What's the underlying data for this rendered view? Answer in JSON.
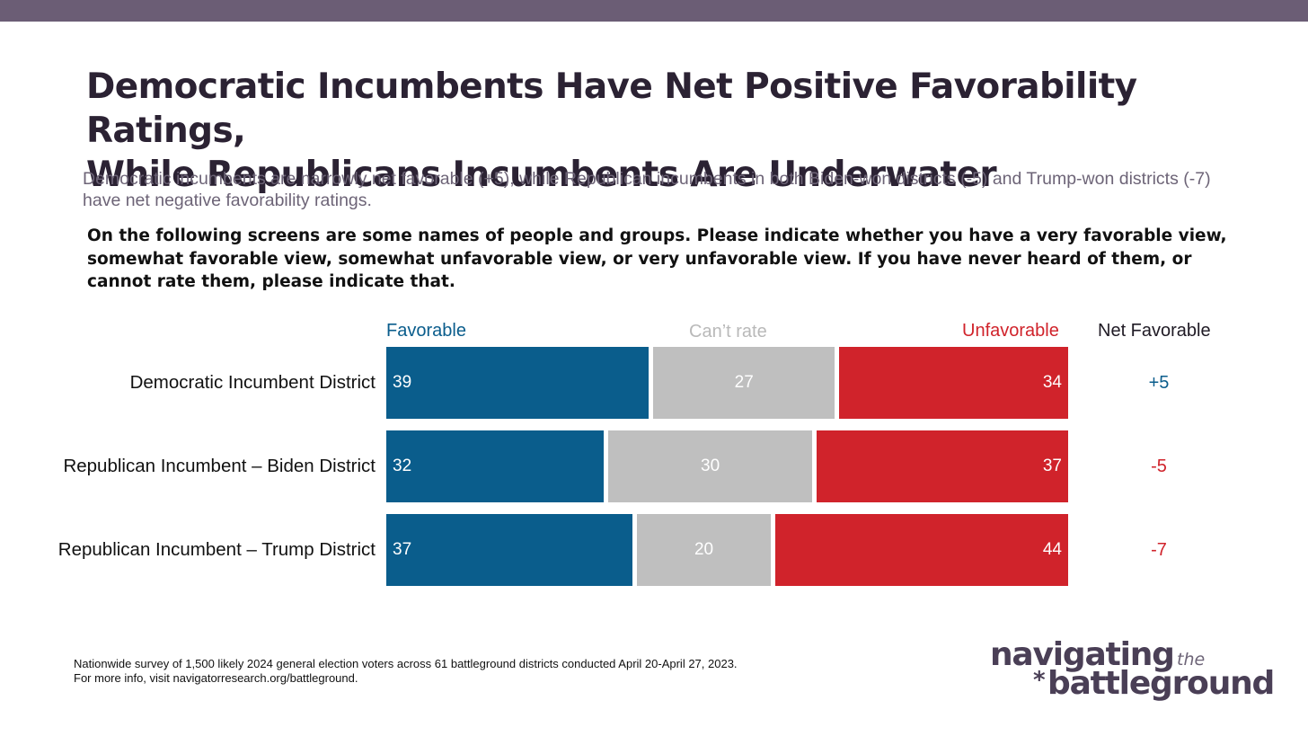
{
  "header": {
    "title_line1": "Democratic Incumbents Have Net Positive Favorability Ratings,",
    "title_line2": "While Republicans Incumbents Are Underwater",
    "subtitle": "Democratic incumbents are narrowly net favorable (+5), while Republican incumbents in both Biden-won districts (-5) and Trump-won districts (-7) have net negative favorability ratings.",
    "question": "On the following screens are some names of people and groups. Please indicate whether you have a very favorable view, somewhat favorable view, somewhat unfavorable view, or very unfavorable view. If you have never heard of them, or cannot rate them, please indicate that."
  },
  "chart_data": {
    "type": "bar",
    "orientation": "horizontal",
    "stacked": true,
    "categories": [
      "Democratic Incumbent District",
      "Republican Incumbent – Biden District",
      "Republican Incumbent – Trump District"
    ],
    "series": [
      {
        "name": "Favorable",
        "values": [
          39,
          32,
          37
        ],
        "color": "#0a5d8c"
      },
      {
        "name": "Can’t rate",
        "values": [
          27,
          30,
          20
        ],
        "color": "#bfbfbf"
      },
      {
        "name": "Unfavorable",
        "values": [
          34,
          37,
          44
        ],
        "color": "#d0232b"
      }
    ],
    "net_header": "Net Favorable",
    "net_values": [
      "+5",
      "-5",
      "-7"
    ],
    "net_colors": [
      "#0a5d8c",
      "#d0232b",
      "#d0232b"
    ],
    "legend_placement": "top",
    "grid": false
  },
  "footnote": {
    "line1": "Nationwide survey of 1,500 likely 2024 general election voters across 61 battleground districts conducted April 20-April 27, 2023.",
    "line2": "For more info, visit navigatorresearch.org/battleground."
  },
  "logo": {
    "word1": "navigating",
    "word2": "the",
    "word3": "battleground",
    "star": "*"
  },
  "colors": {
    "topbar": "#6b5d75",
    "title": "#2b2233",
    "subtitle": "#6d6477",
    "favorable": "#0a5d8c",
    "cant_rate": "#bfbfbf",
    "unfavorable": "#d0232b"
  }
}
